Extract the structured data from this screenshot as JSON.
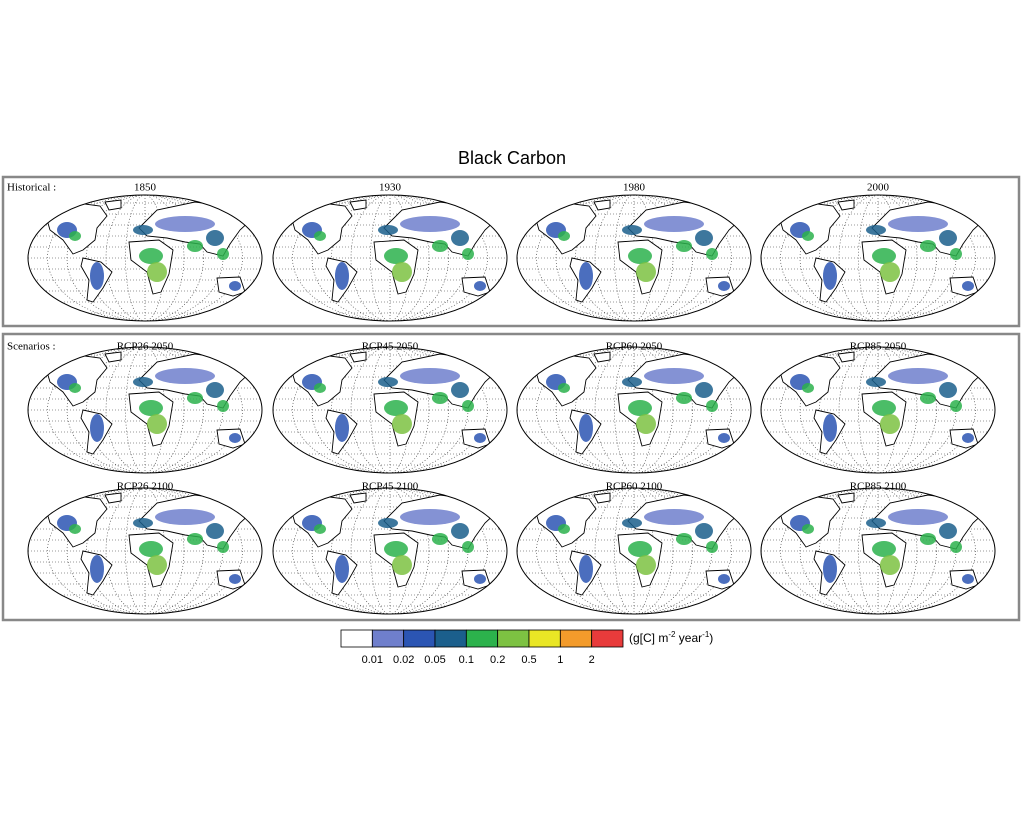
{
  "title": "Black Carbon",
  "sections": [
    {
      "label": "Historical :",
      "panels": [
        "1850",
        "1930",
        "1980",
        "2000"
      ]
    },
    {
      "label": "Scenarios :",
      "panels": [
        "RCP26 2050",
        "RCP45 2050",
        "RCP60 2050",
        "RCP85 2050",
        "RCP26 2100",
        "RCP45 2100",
        "RCP60 2100",
        "RCP85 2100"
      ]
    }
  ],
  "legend": {
    "colors": [
      "#ffffff",
      "#6f7fcc",
      "#2b55b3",
      "#1b5f8c",
      "#2cb24c",
      "#7dc242",
      "#e9e625",
      "#f39b2b",
      "#e83b3b"
    ],
    "ticks": [
      0.01,
      0.02,
      0.05,
      0.1,
      0.2,
      0.5,
      1,
      2
    ],
    "unit": [
      "(g[C] m",
      "-2",
      " year",
      "-1",
      ")"
    ]
  }
}
